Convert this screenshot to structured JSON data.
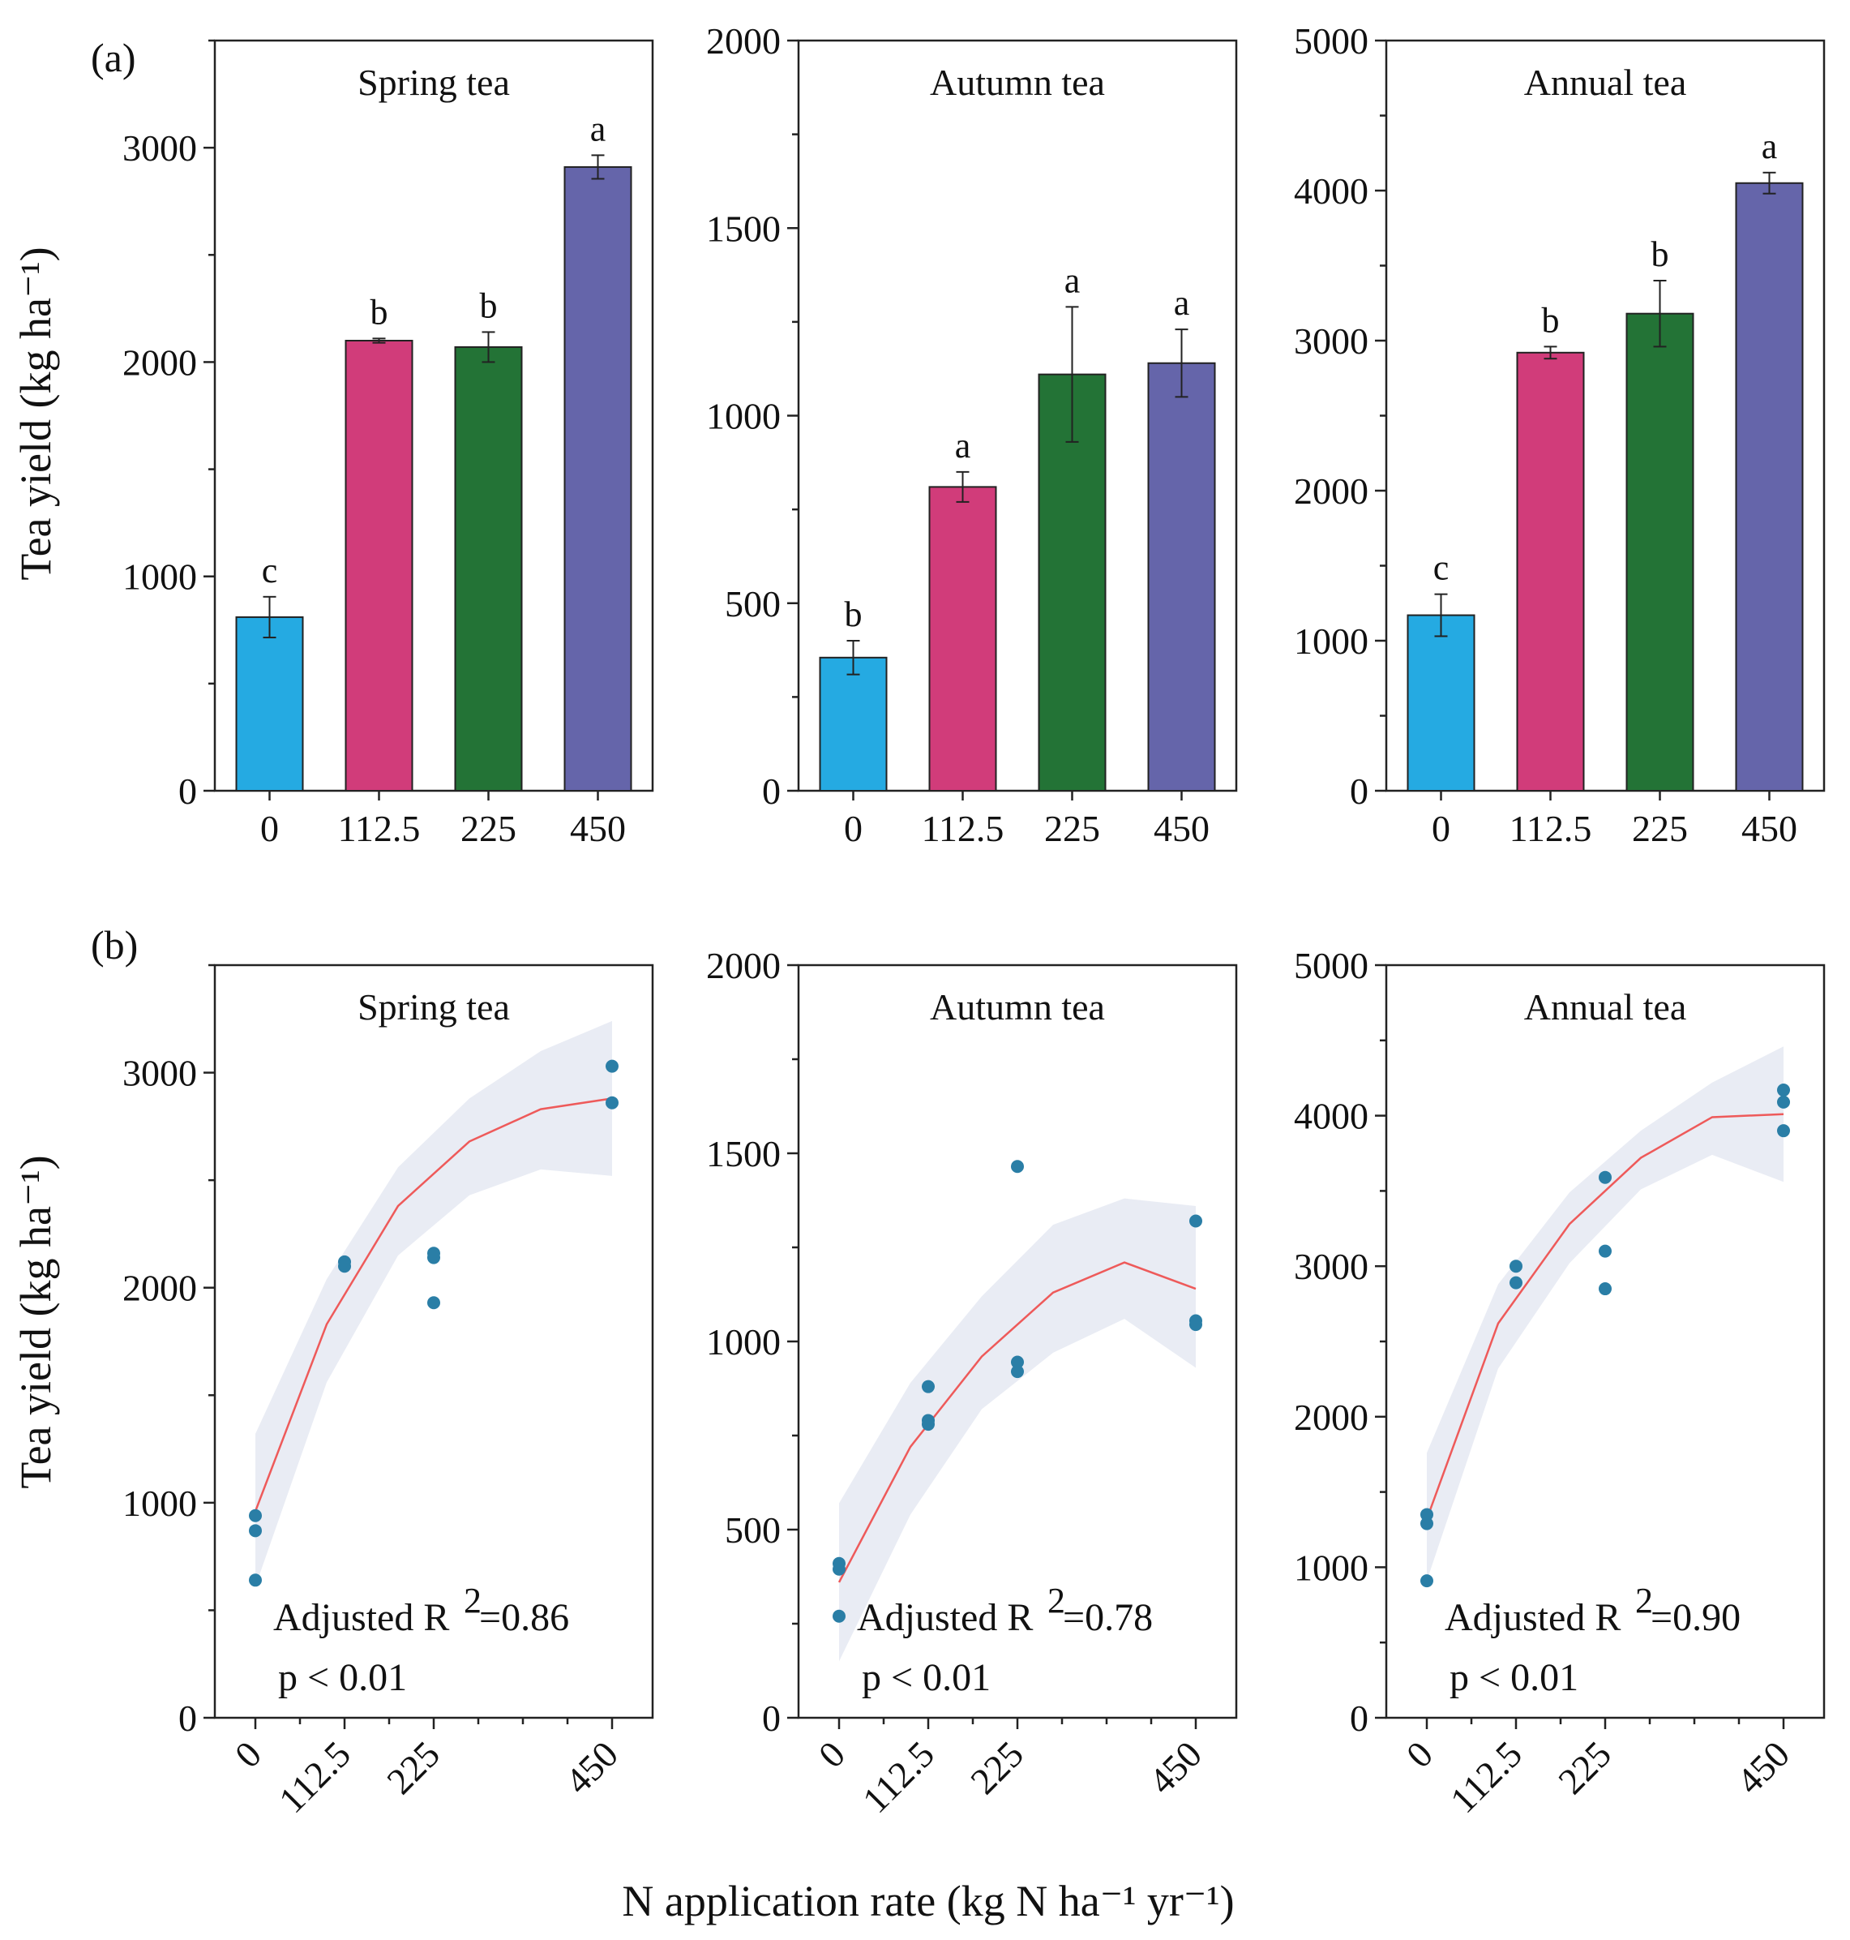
{
  "figure": {
    "panel_labels": [
      "(a)",
      "(b)"
    ],
    "ylabel": "Tea  yield (kg ha⁻¹)",
    "xlabel": "N application rate (kg N ha⁻¹ yr⁻¹)"
  },
  "colors": {
    "bars": [
      "#25aae2",
      "#d13c7a",
      "#237336",
      "#6565aa"
    ],
    "points": "#2a7ea6",
    "fit": "#ee5a5a",
    "ci_band": "#e9ecf4"
  },
  "chart_data": [
    {
      "type": "bar",
      "panel": "a",
      "title": "Spring tea",
      "categories": [
        "0",
        "112.5",
        "225",
        "450"
      ],
      "values": [
        810,
        2100,
        2070,
        2910
      ],
      "errors": [
        95,
        10,
        70,
        55
      ],
      "labels": [
        "c",
        "b",
        "b",
        "a"
      ],
      "ylim": [
        0,
        3500
      ],
      "yticks": [
        0,
        1000,
        2000,
        3000
      ]
    },
    {
      "type": "bar",
      "panel": "a",
      "title": "Autumn tea",
      "categories": [
        "0",
        "112.5",
        "225",
        "450"
      ],
      "values": [
        355,
        810,
        1110,
        1140
      ],
      "errors": [
        45,
        40,
        180,
        90
      ],
      "labels": [
        "b",
        "a",
        "a",
        "a"
      ],
      "ylim": [
        0,
        2000
      ],
      "yticks": [
        0,
        500,
        1000,
        1500,
        2000
      ]
    },
    {
      "type": "bar",
      "panel": "a",
      "title": "Annual tea",
      "categories": [
        "0",
        "112.5",
        "225",
        "450"
      ],
      "values": [
        1170,
        2920,
        3180,
        4050
      ],
      "errors": [
        140,
        40,
        220,
        70
      ],
      "labels": [
        "c",
        "b",
        "b",
        "a"
      ],
      "ylim": [
        0,
        5000
      ],
      "yticks": [
        0,
        1000,
        2000,
        3000,
        4000,
        5000
      ]
    },
    {
      "type": "scatter",
      "panel": "b",
      "title": "Spring tea",
      "x_ticks": [
        "0",
        "112.5",
        "225",
        "450"
      ],
      "points": [
        [
          0,
          940
        ],
        [
          0,
          870
        ],
        [
          0,
          640
        ],
        [
          112.5,
          2120
        ],
        [
          112.5,
          2100
        ],
        [
          225,
          2160
        ],
        [
          225,
          2140
        ],
        [
          225,
          1930
        ],
        [
          450,
          3030
        ],
        [
          450,
          2860
        ]
      ],
      "fit": [
        [
          0,
          960
        ],
        [
          90,
          1830
        ],
        [
          180,
          2380
        ],
        [
          270,
          2680
        ],
        [
          360,
          2830
        ],
        [
          450,
          2880
        ]
      ],
      "ci_upper": [
        [
          0,
          1320
        ],
        [
          90,
          2040
        ],
        [
          180,
          2560
        ],
        [
          270,
          2880
        ],
        [
          360,
          3100
        ],
        [
          450,
          3240
        ]
      ],
      "ci_lower": [
        [
          0,
          610
        ],
        [
          90,
          1560
        ],
        [
          180,
          2150
        ],
        [
          270,
          2430
        ],
        [
          360,
          2550
        ],
        [
          450,
          2520
        ]
      ],
      "stat_label": "Adjusted R",
      "stat_value": "=0.86",
      "p_value": "p < 0.01",
      "ylim": [
        0,
        3500
      ],
      "yticks": [
        0,
        1000,
        2000,
        3000
      ]
    },
    {
      "type": "scatter",
      "panel": "b",
      "title": "Autumn tea",
      "x_ticks": [
        "0",
        "112.5",
        "225",
        "450"
      ],
      "points": [
        [
          0,
          410
        ],
        [
          0,
          395
        ],
        [
          0,
          270
        ],
        [
          112.5,
          880
        ],
        [
          112.5,
          790
        ],
        [
          112.5,
          780
        ],
        [
          225,
          1465
        ],
        [
          225,
          945
        ],
        [
          225,
          920
        ],
        [
          450,
          1320
        ],
        [
          450,
          1055
        ],
        [
          450,
          1045
        ]
      ],
      "fit": [
        [
          0,
          360
        ],
        [
          90,
          720
        ],
        [
          180,
          960
        ],
        [
          270,
          1130
        ],
        [
          360,
          1210
        ],
        [
          450,
          1140
        ]
      ],
      "ci_upper": [
        [
          0,
          570
        ],
        [
          90,
          890
        ],
        [
          180,
          1120
        ],
        [
          270,
          1310
        ],
        [
          360,
          1380
        ],
        [
          450,
          1360
        ]
      ],
      "ci_lower": [
        [
          0,
          150
        ],
        [
          90,
          540
        ],
        [
          180,
          820
        ],
        [
          270,
          970
        ],
        [
          360,
          1060
        ],
        [
          450,
          930
        ]
      ],
      "stat_label": "Adjusted R",
      "stat_value": "=0.78",
      "p_value": "p < 0.01",
      "ylim": [
        0,
        2000
      ],
      "yticks": [
        0,
        500,
        1000,
        1500,
        2000
      ]
    },
    {
      "type": "scatter",
      "panel": "b",
      "title": "Annual tea",
      "x_ticks": [
        "0",
        "112.5",
        "225",
        "450"
      ],
      "points": [
        [
          0,
          1350
        ],
        [
          0,
          1290
        ],
        [
          0,
          910
        ],
        [
          112.5,
          3000
        ],
        [
          112.5,
          2890
        ],
        [
          225,
          3590
        ],
        [
          225,
          3100
        ],
        [
          225,
          2850
        ],
        [
          450,
          4170
        ],
        [
          450,
          4090
        ],
        [
          450,
          3900
        ]
      ],
      "fit": [
        [
          0,
          1320
        ],
        [
          90,
          2620
        ],
        [
          180,
          3280
        ],
        [
          270,
          3720
        ],
        [
          360,
          3990
        ],
        [
          450,
          4010
        ]
      ],
      "ci_upper": [
        [
          0,
          1760
        ],
        [
          90,
          2880
        ],
        [
          180,
          3490
        ],
        [
          270,
          3900
        ],
        [
          360,
          4220
        ],
        [
          450,
          4460
        ]
      ],
      "ci_lower": [
        [
          0,
          910
        ],
        [
          90,
          2320
        ],
        [
          180,
          3020
        ],
        [
          270,
          3510
        ],
        [
          360,
          3740
        ],
        [
          450,
          3560
        ]
      ],
      "stat_label": "Adjusted R",
      "stat_value": "=0.90",
      "p_value": "p < 0.01",
      "ylim": [
        0,
        5000
      ],
      "yticks": [
        0,
        1000,
        2000,
        3000,
        4000,
        5000
      ]
    }
  ]
}
